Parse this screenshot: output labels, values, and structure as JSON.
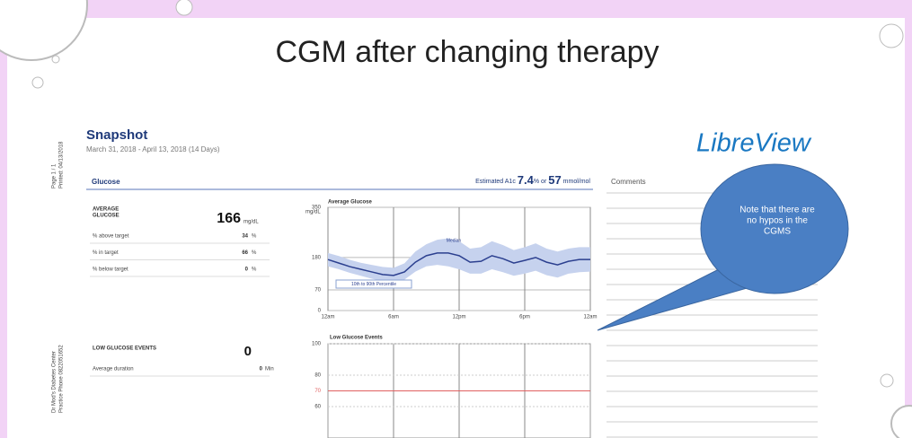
{
  "slide": {
    "title": "CGM after changing therapy",
    "callout": [
      "Note that there are",
      "no hypos in the",
      "CGMS"
    ]
  },
  "report": {
    "title": "Snapshot",
    "date_range": "March 31, 2018 - April 13, 2018 (14 Days)",
    "brand": "LibreView",
    "side": {
      "page": "Page 1 / 1",
      "printed": "Printed: 04/13/2018",
      "clinic": "Dr Mod's Diabetes Center",
      "phone": "Practice Phone 0822051652"
    },
    "glucose": {
      "heading": "Glucose",
      "a1c_label": "Estimated A1c",
      "a1c_value": "7.4",
      "a1c_unit": "%",
      "or": "or",
      "mmol_value": "57",
      "mmol_unit": "mmol/mol"
    },
    "comments": "Comments",
    "average": {
      "label_lines": [
        "AVERAGE",
        "GLUCOSE"
      ],
      "value": "166",
      "unit": "mg/dL"
    },
    "rows": [
      [
        "% above target",
        "34",
        "%"
      ],
      [
        "% in target",
        "66",
        "%"
      ],
      [
        "% below target",
        "0",
        "%"
      ]
    ],
    "low_events": {
      "label": "LOW GLUCOSE EVENTS",
      "value": "0",
      "duration_label": "Average duration",
      "duration_value": "0",
      "duration_unit": "Min"
    }
  },
  "chart_data": [
    {
      "type": "line",
      "title": "Average Glucose",
      "y_unit": "mg/dL",
      "x": [
        0,
        1,
        2,
        3,
        4,
        5,
        6,
        7,
        8,
        9,
        10,
        11,
        12,
        13,
        14,
        15,
        16,
        17,
        18,
        19,
        20,
        21,
        22,
        23,
        24
      ],
      "series": [
        {
          "name": "Median",
          "color": "#2b3f8f",
          "values": [
            173,
            161,
            149,
            140,
            131,
            122,
            119,
            131,
            164,
            186,
            195,
            195,
            186,
            164,
            167,
            186,
            176,
            161,
            170,
            180,
            164,
            155,
            167,
            173,
            173
          ]
        },
        {
          "name": "10th to 90th Percentile",
          "color": "#c6d2ee",
          "low": [
            150,
            140,
            128,
            118,
            108,
            100,
            98,
            105,
            132,
            150,
            155,
            150,
            140,
            125,
            125,
            140,
            130,
            118,
            125,
            135,
            120,
            112,
            125,
            130,
            132
          ],
          "high": [
            195,
            185,
            172,
            162,
            155,
            148,
            145,
            160,
            200,
            225,
            240,
            245,
            235,
            210,
            215,
            235,
            222,
            205,
            215,
            228,
            210,
            200,
            210,
            215,
            215
          ]
        }
      ],
      "xlim": [
        0,
        24
      ],
      "xticks": [
        {
          "value": 0,
          "label": "12am"
        },
        {
          "value": 6,
          "label": "6am"
        },
        {
          "value": 12,
          "label": "12pm"
        },
        {
          "value": 18,
          "label": "6pm"
        },
        {
          "value": 24,
          "label": "12am"
        }
      ],
      "ylim": [
        0,
        350
      ],
      "yticks": [
        0,
        70,
        180,
        350
      ],
      "grid": true
    },
    {
      "type": "events",
      "title": "Low Glucose Events",
      "ylim": [
        50,
        100
      ],
      "yticks": [
        100,
        80,
        70,
        60
      ],
      "threshold": 70,
      "threshold_color": "#e06060"
    }
  ]
}
